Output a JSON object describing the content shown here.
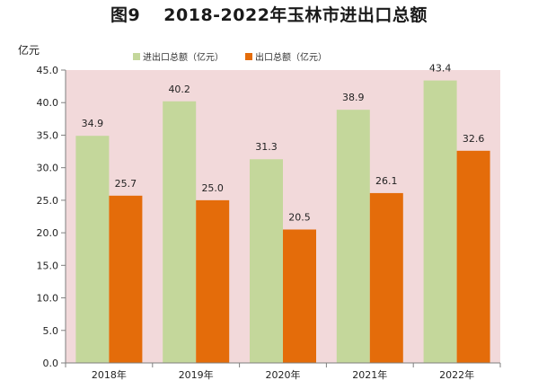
{
  "chart_data": {
    "type": "bar",
    "title_prefix": "图9",
    "title": "2018-2022年玉林市进出口总额",
    "ylabel": "亿元",
    "xlabel": "",
    "categories": [
      "2018年",
      "2019年",
      "2020年",
      "2021年",
      "2022年"
    ],
    "ylim": [
      0,
      45
    ],
    "ytick_step": 5,
    "yticks": [
      "0.0",
      "5.0",
      "10.0",
      "15.0",
      "20.0",
      "25.0",
      "30.0",
      "35.0",
      "40.0",
      "45.0"
    ],
    "grid": false,
    "legend_position": "top",
    "plot_background": "#f2d9da",
    "series": [
      {
        "name": "进出口总额（亿元）",
        "color": "#c4d79b",
        "values": [
          34.9,
          40.2,
          31.3,
          38.9,
          43.4
        ],
        "labels": [
          "34.9",
          "40.2",
          "31.3",
          "38.9",
          "43.4"
        ]
      },
      {
        "name": "出口总额（亿元）",
        "color": "#e46c0a",
        "values": [
          25.7,
          25.0,
          20.5,
          26.1,
          32.6
        ],
        "labels": [
          "25.7",
          "25.0",
          "20.5",
          "26.1",
          "32.6"
        ]
      }
    ]
  }
}
